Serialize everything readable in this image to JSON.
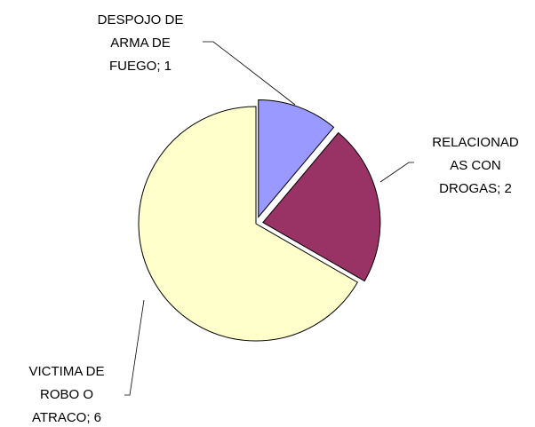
{
  "chart_data": {
    "type": "pie",
    "values": [
      1,
      2,
      6
    ],
    "value_labels": [
      "DESPOJO DE ARMA DE FUEGO; 1",
      "RELACIONADAS CON DROGAS; 2",
      "VICTIMA DE ROBO O ATRACO; 6"
    ],
    "colors": [
      "#9999ff",
      "#993366",
      "#ffffcc"
    ]
  }
}
